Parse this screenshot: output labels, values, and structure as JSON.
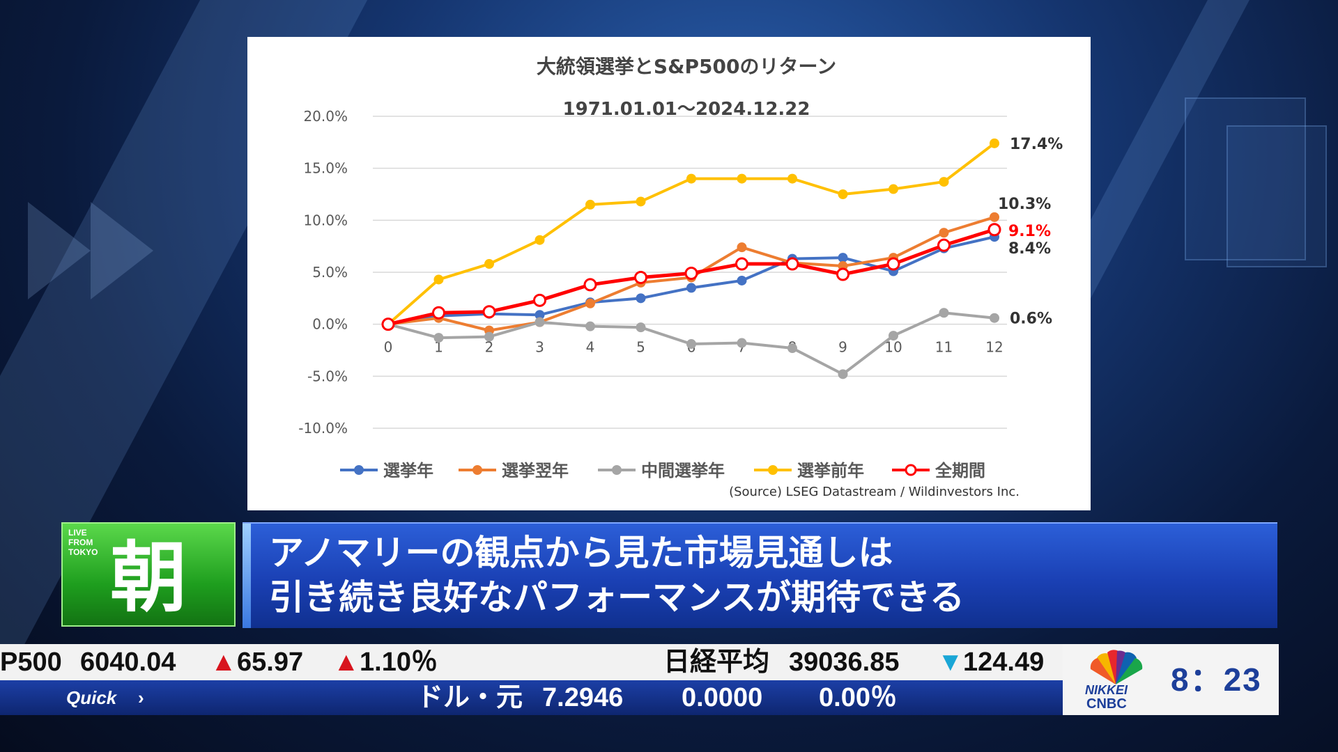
{
  "chart_data": {
    "type": "line",
    "title": "大統領選挙とS&P500のリターン",
    "subtitle": "1971.01.01～2024.12.22",
    "categories": [
      "0",
      "1",
      "2",
      "3",
      "4",
      "5",
      "6",
      "7",
      "8",
      "9",
      "10",
      "11",
      "12"
    ],
    "ylim": [
      -10,
      20
    ],
    "yticks": [
      "20.0%",
      "15.0%",
      "10.0%",
      "5.0%",
      "0.0%",
      "-5.0%",
      "-10.0%"
    ],
    "ytick_values": [
      20,
      15,
      10,
      5,
      0,
      -5,
      -10
    ],
    "grid": true,
    "legend_position": "bottom",
    "series": [
      {
        "name": "選挙年",
        "color": "#4472c4",
        "marker": "filled",
        "values": [
          0,
          0.8,
          1.0,
          0.9,
          2.1,
          2.5,
          3.5,
          4.2,
          6.3,
          6.4,
          5.1,
          7.3,
          8.4
        ],
        "end_label": "8.4%",
        "label_color": "#333333"
      },
      {
        "name": "選挙翌年",
        "color": "#ed7d31",
        "marker": "filled",
        "values": [
          0,
          0.6,
          -0.6,
          0.2,
          2.0,
          4.0,
          4.5,
          7.4,
          5.9,
          5.6,
          6.4,
          8.8,
          10.3
        ],
        "end_label": "10.3%",
        "label_color": "#333333"
      },
      {
        "name": "中間選挙年",
        "color": "#a5a5a5",
        "marker": "filled",
        "values": [
          0,
          -1.3,
          -1.2,
          0.2,
          -0.2,
          -0.3,
          -1.9,
          -1.8,
          -2.3,
          -4.8,
          -1.1,
          1.1,
          0.6
        ],
        "end_label": "0.6%",
        "label_color": "#333333"
      },
      {
        "name": "選挙前年",
        "color": "#ffc000",
        "marker": "filled",
        "values": [
          0,
          4.3,
          5.8,
          8.1,
          11.5,
          11.8,
          14.0,
          14.0,
          14.0,
          12.5,
          13.0,
          13.7,
          17.4
        ],
        "end_label": "17.4%",
        "label_color": "#333333"
      },
      {
        "name": "全期間",
        "color": "#ff0000",
        "marker": "open",
        "values": [
          0,
          1.1,
          1.2,
          2.3,
          3.8,
          4.5,
          4.9,
          5.8,
          5.8,
          4.8,
          5.8,
          7.6,
          9.1
        ],
        "end_label": "9.1%",
        "label_color": "#ff0000"
      }
    ],
    "source": "(Source) LSEG Datastream / Wildinvestors Inc."
  },
  "lower_third": {
    "live_label": "LIVE\nFROM\nTOKYO",
    "program_char": "朝",
    "headline_line1": "アノマリーの観点から見た市場見通しは",
    "headline_line2": "引き続き良好なパフォーマンスが期待できる"
  },
  "ticker": {
    "sp_name": "P500",
    "sp_value": "6040.04",
    "sp_change_arrow": "▲",
    "sp_change": "65.97",
    "sp_pct_arrow": "▲",
    "sp_pct": "1.10％",
    "nikkei_name": "日経平均",
    "nikkei_value": "39036.85",
    "nikkei_change_arrow": "▼",
    "nikkei_change": "124.49",
    "quick_label": "Quick",
    "fx_name": "ドル・元",
    "fx_value": "7.2946",
    "fx_change": "0.0000",
    "fx_pct": "0.00％"
  },
  "logo": {
    "nikkei": "NIKKEI",
    "cnbc": "CNBC",
    "icon": "peacock-logo-icon",
    "time": "8：23"
  }
}
